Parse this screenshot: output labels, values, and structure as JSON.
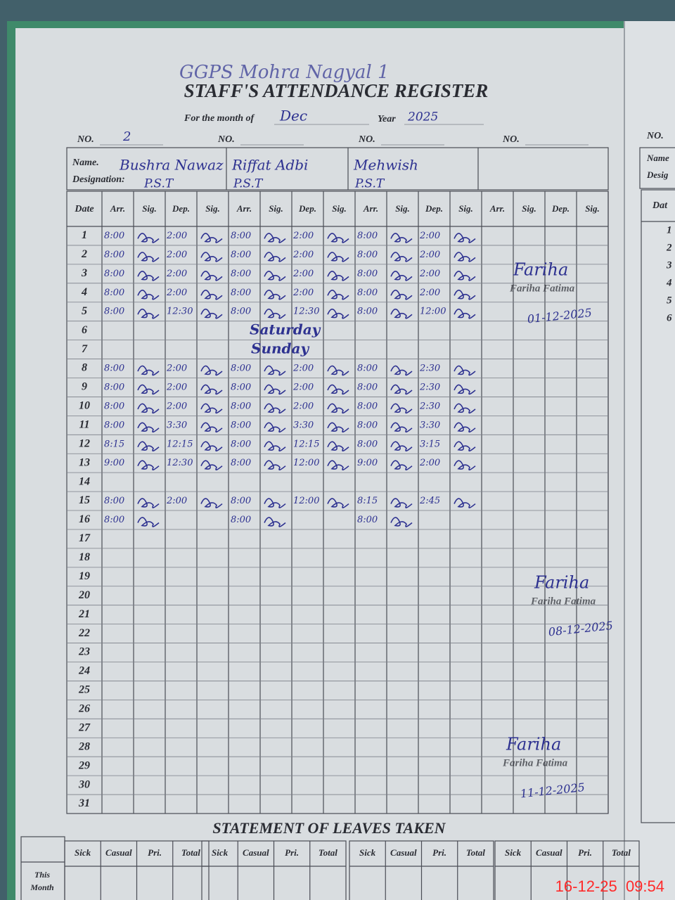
{
  "header": {
    "school": "GGPS Mohra Nagyal 1",
    "title": "STAFF'S ATTENDANCE REGISTER",
    "month_label": "For the month of",
    "month": "Dec",
    "year_label": "Year",
    "year": "2025",
    "no_label": "NO.",
    "name_label": "Name.",
    "designation_label": "Designation:"
  },
  "staff": [
    {
      "no": "2",
      "name": "Bushra Nawaz",
      "designation": "P.S.T"
    },
    {
      "name": "Riffat Adbi",
      "designation": "P.S.T"
    },
    {
      "name": "Mehwish",
      "designation": "P.S.T"
    }
  ],
  "columns": {
    "date": "Date",
    "arr": "Arr.",
    "sig": "Sig.",
    "dep": "Dep."
  },
  "rows": [
    {
      "date": "1",
      "staff": [
        {
          "arr": "8:00",
          "dep": "2:00"
        },
        {
          "arr": "8:00",
          "dep": "2:00"
        },
        {
          "arr": "8:00",
          "dep": "2:00"
        }
      ]
    },
    {
      "date": "2",
      "staff": [
        {
          "arr": "8:00",
          "dep": "2:00"
        },
        {
          "arr": "8:00",
          "dep": "2:00"
        },
        {
          "arr": "8:00",
          "dep": "2:00"
        }
      ]
    },
    {
      "date": "3",
      "staff": [
        {
          "arr": "8:00",
          "dep": "2:00"
        },
        {
          "arr": "8:00",
          "dep": "2:00"
        },
        {
          "arr": "8:00",
          "dep": "2:00"
        }
      ]
    },
    {
      "date": "4",
      "staff": [
        {
          "arr": "8:00",
          "dep": "2:00"
        },
        {
          "arr": "8:00",
          "dep": "2:00"
        },
        {
          "arr": "8:00",
          "dep": "2:00"
        }
      ]
    },
    {
      "date": "5",
      "staff": [
        {
          "arr": "8:00",
          "dep": "12:30"
        },
        {
          "arr": "8:00",
          "dep": "12:30"
        },
        {
          "arr": "8:00",
          "dep": "12:00"
        }
      ]
    },
    {
      "date": "6",
      "note": "Saturday"
    },
    {
      "date": "7",
      "note": "Sunday"
    },
    {
      "date": "8",
      "staff": [
        {
          "arr": "8:00",
          "dep": "2:00"
        },
        {
          "arr": "8:00",
          "dep": "2:00"
        },
        {
          "arr": "8:00",
          "dep": "2:30"
        }
      ]
    },
    {
      "date": "9",
      "staff": [
        {
          "arr": "8:00",
          "dep": "2:00"
        },
        {
          "arr": "8:00",
          "dep": "2:00"
        },
        {
          "arr": "8:00",
          "dep": "2:30"
        }
      ]
    },
    {
      "date": "10",
      "staff": [
        {
          "arr": "8:00",
          "dep": "2:00"
        },
        {
          "arr": "8:00",
          "dep": "2:00"
        },
        {
          "arr": "8:00",
          "dep": "2:30"
        }
      ]
    },
    {
      "date": "11",
      "staff": [
        {
          "arr": "8:00",
          "dep": "3:30"
        },
        {
          "arr": "8:00",
          "dep": "3:30"
        },
        {
          "arr": "8:00",
          "dep": "3:30"
        }
      ]
    },
    {
      "date": "12",
      "staff": [
        {
          "arr": "8:15",
          "dep": "12:15"
        },
        {
          "arr": "8:00",
          "dep": "12:15"
        },
        {
          "arr": "8:00",
          "dep": "3:15"
        }
      ]
    },
    {
      "date": "13",
      "staff": [
        {
          "arr": "9:00",
          "dep": "12:30"
        },
        {
          "arr": "8:00",
          "dep": "12:00"
        },
        {
          "arr": "9:00",
          "dep": "2:00"
        }
      ]
    },
    {
      "date": "14"
    },
    {
      "date": "15",
      "staff": [
        {
          "arr": "8:00",
          "dep": "2:00"
        },
        {
          "arr": "8:00",
          "dep": "12:00"
        },
        {
          "arr": "8:15",
          "dep": "2:45"
        }
      ]
    },
    {
      "date": "16",
      "staff": [
        {
          "arr": "8:00"
        },
        {
          "arr": "8:00"
        },
        {
          "arr": "8:00"
        }
      ]
    },
    {
      "date": "17"
    },
    {
      "date": "18"
    },
    {
      "date": "19"
    },
    {
      "date": "20"
    },
    {
      "date": "21"
    },
    {
      "date": "22"
    },
    {
      "date": "23"
    },
    {
      "date": "24"
    },
    {
      "date": "25"
    },
    {
      "date": "26"
    },
    {
      "date": "27"
    },
    {
      "date": "28"
    },
    {
      "date": "29"
    },
    {
      "date": "30"
    },
    {
      "date": "31"
    }
  ],
  "stamps": [
    {
      "signature": "Fariha",
      "stamp": "Fariha Fatima",
      "date": "01-12-2025"
    },
    {
      "signature": "Fariha",
      "stamp": "Fariha Fatima",
      "date": "08-12-2025"
    },
    {
      "signature": "Fariha",
      "stamp": "Fariha Fatima",
      "date": "11-12-2025"
    }
  ],
  "leaves": {
    "title": "STATEMENT OF LEAVES TAKEN",
    "columns": [
      "Sick",
      "Casual",
      "Pri.",
      "Total"
    ],
    "row_label": [
      "This",
      "Month"
    ]
  },
  "right_page": {
    "no": "NO.",
    "name": "Name",
    "designation": "Desig",
    "date": "Dat",
    "dates": [
      "1",
      "2",
      "3",
      "4",
      "5",
      "6"
    ]
  },
  "timestamp": "16-12-25  09:54"
}
